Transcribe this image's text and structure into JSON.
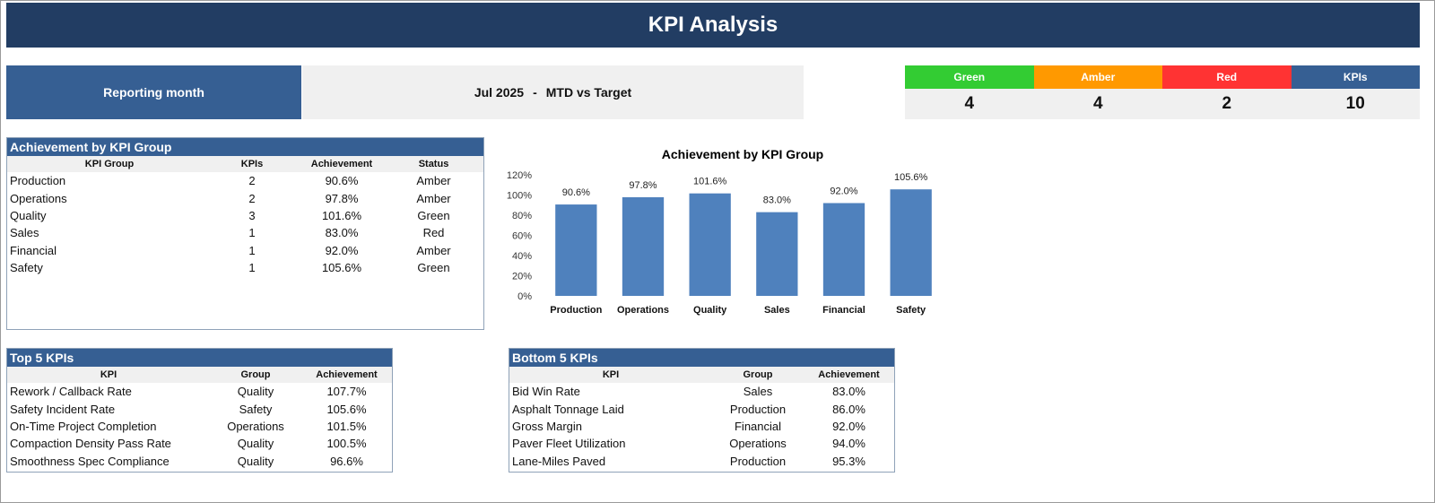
{
  "header": {
    "title": "KPI Analysis"
  },
  "reporting": {
    "label": "Reporting month",
    "month": "Jul 2025",
    "separator": "-",
    "mode": "MTD vs Target"
  },
  "status_summary": [
    {
      "label": "Green",
      "value": "4",
      "color": "#33cc33"
    },
    {
      "label": "Amber",
      "value": "4",
      "color": "#ff9900"
    },
    {
      "label": "Red",
      "value": "2",
      "color": "#ff3333"
    },
    {
      "label": "KPIs",
      "value": "10",
      "color": "#365f93"
    }
  ],
  "group_table": {
    "title": "Achievement by KPI Group",
    "columns": [
      "KPI Group",
      "KPIs",
      "Achievement",
      "Status"
    ],
    "rows": [
      [
        "Production",
        "2",
        "90.6%",
        "Amber"
      ],
      [
        "Operations",
        "2",
        "97.8%",
        "Amber"
      ],
      [
        "Quality",
        "3",
        "101.6%",
        "Green"
      ],
      [
        "Sales",
        "1",
        "83.0%",
        "Red"
      ],
      [
        "Financial",
        "1",
        "92.0%",
        "Amber"
      ],
      [
        "Safety",
        "1",
        "105.6%",
        "Green"
      ]
    ]
  },
  "top5": {
    "title": "Top 5 KPIs",
    "columns": [
      "KPI",
      "Group",
      "Achievement"
    ],
    "rows": [
      [
        "Rework / Callback Rate",
        "Quality",
        "107.7%"
      ],
      [
        "Safety Incident Rate",
        "Safety",
        "105.6%"
      ],
      [
        "On-Time Project Completion",
        "Operations",
        "101.5%"
      ],
      [
        "Compaction Density Pass Rate",
        "Quality",
        "100.5%"
      ],
      [
        "Smoothness Spec Compliance",
        "Quality",
        "96.6%"
      ]
    ]
  },
  "bottom5": {
    "title": "Bottom 5 KPIs",
    "columns": [
      "KPI",
      "Group",
      "Achievement"
    ],
    "rows": [
      [
        "Bid Win Rate",
        "Sales",
        "83.0%"
      ],
      [
        "Asphalt Tonnage Laid",
        "Production",
        "86.0%"
      ],
      [
        "Gross Margin",
        "Financial",
        "92.0%"
      ],
      [
        "Paver Fleet Utilization",
        "Operations",
        "94.0%"
      ],
      [
        "Lane-Miles Paved",
        "Production",
        "95.3%"
      ]
    ]
  },
  "chart_data": {
    "type": "bar",
    "title": "Achievement by KPI Group",
    "categories": [
      "Production",
      "Operations",
      "Quality",
      "Sales",
      "Financial",
      "Safety"
    ],
    "values": [
      90.6,
      97.8,
      101.6,
      83.0,
      92.0,
      105.6
    ],
    "data_labels": [
      "90.6%",
      "97.8%",
      "101.6%",
      "83.0%",
      "92.0%",
      "105.6%"
    ],
    "ylim": [
      0,
      120
    ],
    "yticks": [
      "0%",
      "20%",
      "40%",
      "60%",
      "80%",
      "100%",
      "120%"
    ],
    "bar_color": "#4f81bd",
    "grid": false,
    "xlabel": "",
    "ylabel": ""
  }
}
